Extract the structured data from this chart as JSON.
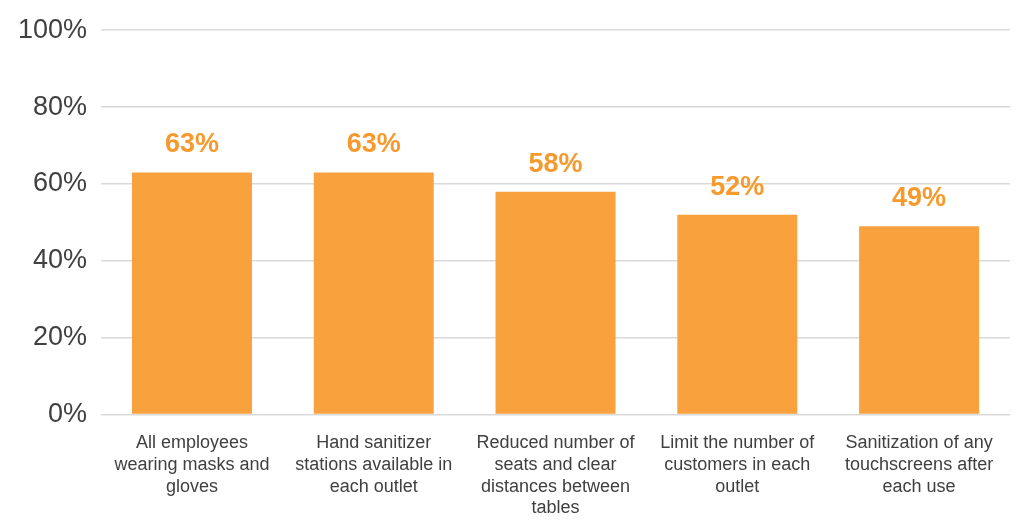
{
  "chart_data": {
    "type": "bar",
    "categories": [
      "All employees wearing masks and gloves",
      "Hand sanitizer stations available in each outlet",
      "Reduced number of seats and clear distances between tables",
      "Limit the number of customers in each outlet",
      "Sanitization of any touchscreens after each use"
    ],
    "values": [
      63,
      63,
      58,
      52,
      49
    ],
    "value_labels": [
      "63%",
      "63%",
      "58%",
      "52%",
      "49%"
    ],
    "color": "#f9a13c",
    "ylim": [
      0,
      100
    ],
    "yticks": [
      {
        "value": 0,
        "label": "0%"
      },
      {
        "value": 20,
        "label": "20%"
      },
      {
        "value": 40,
        "label": "40%"
      },
      {
        "value": 60,
        "label": "60%"
      },
      {
        "value": 80,
        "label": "80%"
      },
      {
        "value": 100,
        "label": "100%"
      }
    ],
    "grid": "y",
    "legend": false
  }
}
